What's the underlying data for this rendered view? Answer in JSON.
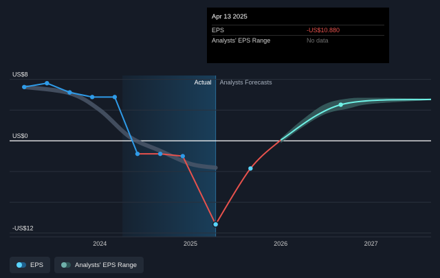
{
  "tooltip": {
    "date": "Apr 13 2025",
    "rows": [
      {
        "label": "EPS",
        "value": "-US$10.880"
      },
      {
        "label": "Analysts' EPS Range",
        "value": "No data"
      }
    ]
  },
  "labels": {
    "actual": "Actual",
    "forecasts": "Analysts Forecasts"
  },
  "legend": {
    "eps": "EPS",
    "range": "Analysts' EPS Range"
  },
  "colors": {
    "background": "#151b26",
    "eps_up": "#2f9be8",
    "eps_down": "#e8524d",
    "forecast": "#6ff2e6",
    "range_band": "#3d6b6a",
    "past_forecast": "#4a5668",
    "shade": "#1b4a6b"
  },
  "chart_data": {
    "type": "line",
    "y_tick_labels": [
      "US$8",
      "US$0",
      "-US$12"
    ],
    "y_ticks": [
      8,
      0,
      -12
    ],
    "ylim": [
      -12.5,
      8.5
    ],
    "x_tick_labels": [
      "2024",
      "2025",
      "2026",
      "2027"
    ],
    "x_ticks": [
      "2024-01-01",
      "2025-01-01",
      "2026-01-01",
      "2027-01-01"
    ],
    "xlim": [
      "2023-01-01",
      "2027-09-01"
    ],
    "actual_start": "2024-04-01",
    "actual_end": "2025-04-13",
    "series": [
      {
        "name": "EPS",
        "points": [
          {
            "x": "2023-03-01",
            "y": 7.0
          },
          {
            "x": "2023-06-01",
            "y": 7.5
          },
          {
            "x": "2023-09-01",
            "y": 6.3
          },
          {
            "x": "2023-12-01",
            "y": 5.7
          },
          {
            "x": "2024-03-01",
            "y": 5.7
          },
          {
            "x": "2024-06-01",
            "y": -1.7
          },
          {
            "x": "2024-09-01",
            "y": -1.7
          },
          {
            "x": "2024-12-01",
            "y": -2.0
          },
          {
            "x": "2025-04-13",
            "y": -10.88
          }
        ]
      },
      {
        "name": "Forecast",
        "points": [
          {
            "x": "2025-04-13",
            "y": -10.88
          },
          {
            "x": "2025-09-01",
            "y": -3.6
          },
          {
            "x": "2026-01-01",
            "y": 0.1
          },
          {
            "x": "2026-09-01",
            "y": 4.7
          },
          {
            "x": "2027-09-01",
            "y": 5.4
          }
        ]
      }
    ],
    "range": {
      "x": [
        "2026-01-01",
        "2026-04-01",
        "2026-07-01",
        "2026-10-01",
        "2027-01-01",
        "2027-09-01"
      ],
      "low": [
        -0.3,
        1.8,
        3.5,
        4.2,
        4.8,
        5.3
      ],
      "high": [
        0.3,
        2.8,
        4.8,
        5.5,
        5.6,
        5.5
      ]
    },
    "past_forecast": {
      "x": [
        "2023-03-01",
        "2023-09-01",
        "2024-01-01",
        "2024-05-01",
        "2024-09-01",
        "2025-01-01",
        "2025-04-13"
      ],
      "y": [
        7.0,
        6.2,
        4.0,
        0.5,
        -1.3,
        -3.0,
        -3.5
      ]
    }
  }
}
